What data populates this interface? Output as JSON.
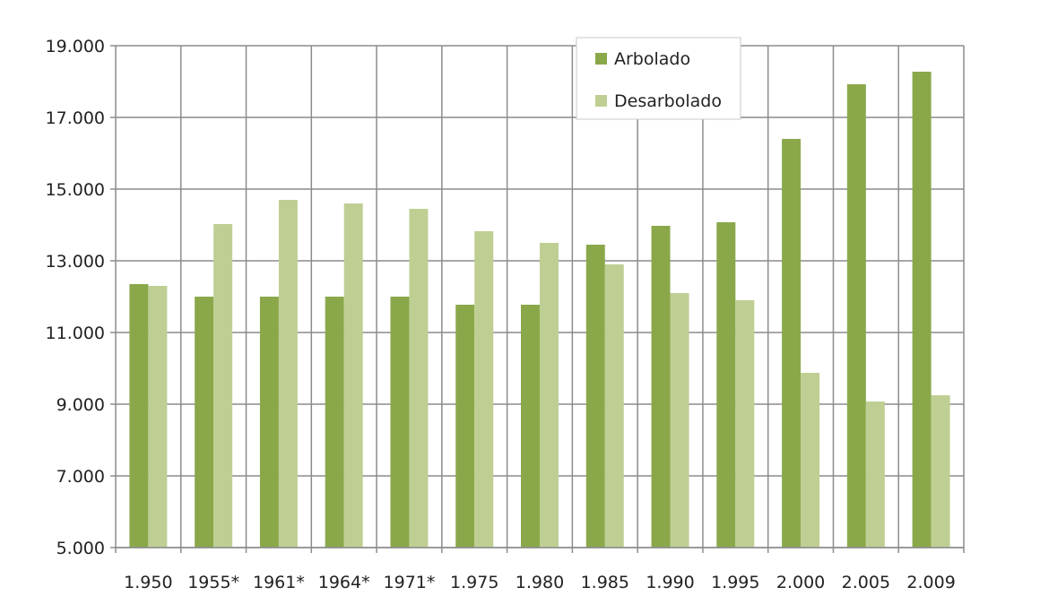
{
  "chart_data": {
    "type": "bar",
    "title": "",
    "xlabel": "",
    "ylabel": "",
    "categories": [
      "1.950",
      "1955*",
      "1961*",
      "1964*",
      "1971*",
      "1.975",
      "1.980",
      "1.985",
      "1.990",
      "1.995",
      "2.000",
      "2.005",
      "2.009"
    ],
    "series": [
      {
        "name": "Arbolado",
        "color": "#8aa84a",
        "values": [
          12350,
          12000,
          12000,
          12000,
          12000,
          11775,
          11775,
          13450,
          13975,
          14075,
          16400,
          17925,
          18275
        ]
      },
      {
        "name": "Desarbolado",
        "color": "#bfcf94",
        "values": [
          12300,
          14025,
          14700,
          14600,
          14450,
          13825,
          13500,
          12900,
          12100,
          11900,
          9875,
          9075,
          9250
        ]
      }
    ],
    "ylim": [
      5000,
      19000
    ],
    "yticks": [
      5000,
      7000,
      9000,
      11000,
      13000,
      15000,
      17000,
      19000
    ],
    "ytick_labels": [
      "5.000",
      "7.000",
      "9.000",
      "11.000",
      "13.000",
      "15.000",
      "17.000",
      "19.000"
    ],
    "grid": true,
    "legend_position": "top-right"
  }
}
